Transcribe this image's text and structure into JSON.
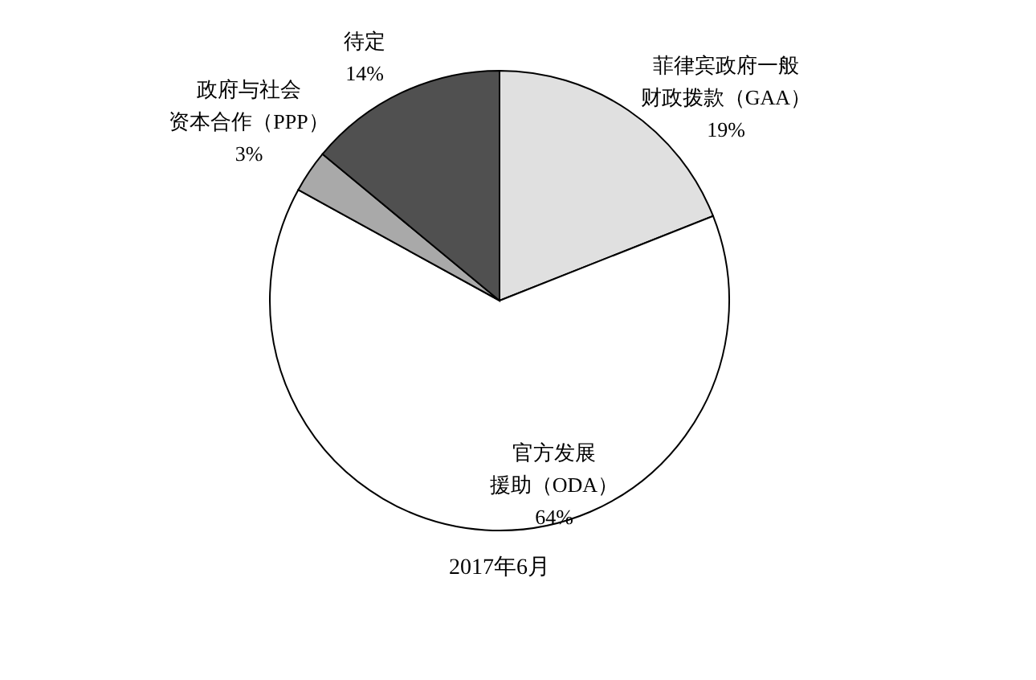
{
  "chart_data": {
    "type": "pie",
    "categories": [
      "菲律宾政府一般财政拨款（GAA）",
      "官方发展援助（ODA）",
      "政府与社会资本合作（PPP）",
      "待定"
    ],
    "values": [
      19,
      64,
      3,
      14
    ],
    "value_labels": [
      "19%",
      "64%",
      "3%",
      "14%"
    ],
    "colors": [
      "#e0e0e0",
      "#ffffff",
      "#a9a9a9",
      "#505050"
    ],
    "annotations": [
      "2017年6月"
    ]
  }
}
